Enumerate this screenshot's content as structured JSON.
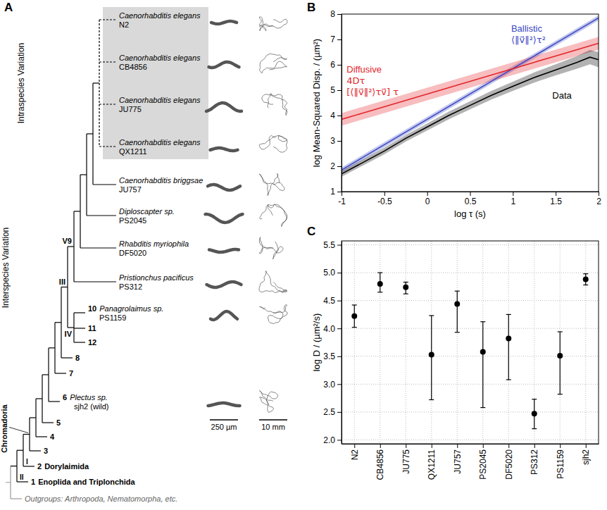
{
  "panel_labels": [
    "A",
    "B",
    "C"
  ],
  "tree": {
    "side_labels": [
      "Intraspecies Variation",
      "Interspecies Variation"
    ],
    "scale_bars": [
      "250 µm",
      "10 mm"
    ],
    "root": {
      "children": [
        {
          "children": [
            {
              "children": [
                {
                  "label": "Chromadoria",
                  "children": [
                    {
                      "children": [
                        {
                          "children": [
                            {
                              "children": [
                                {
                                  "children": [
                                    {
                                      "children": [
                                        {
                                          "label": "III",
                                          "children": [
                                            {
                                              "label": "V9",
                                              "children": [
                                                {
                                                  "children": [
                                                    {
                                                      "children": [
                                                        {
                                                          "children": [
                                                            {
                                                              "line_style": "dashed",
                                                              "children": [
                                                                {
                                                                  "species": "Caenorhabditis elegans",
                                                                  "strain": "N2"
                                                                },
                                                                {
                                                                  "species": "Caenorhabditis elegans",
                                                                  "strain": "CB4856"
                                                                },
                                                                {
                                                                  "species": "Caenorhabditis elegans",
                                                                  "strain": "JU775"
                                                                },
                                                                {
                                                                  "species": "Caenorhabditis elegans",
                                                                  "strain": "QX1211"
                                                                }
                                                              ]
                                                            },
                                                            {
                                                              "species": "Caenorhabditis briggsae",
                                                              "strain": "JU757"
                                                            }
                                                          ]
                                                        },
                                                        {
                                                          "species": "Diploscapter sp.",
                                                          "strain": "PS2045"
                                                        }
                                                      ]
                                                    },
                                                    {
                                                      "species": "Rhabditis myriophila",
                                                      "strain": "DF5020"
                                                    }
                                                  ]
                                                },
                                                {
                                                  "species": "Pristionchus pacificus",
                                                  "strain": "PS312"
                                                }
                                              ]
                                            },
                                            {
                                              "label": "IV",
                                              "children": [
                                                {
                                                  "number": "10",
                                                  "species": "Panagrolaimus sp.",
                                                  "strain": "PS1159"
                                                },
                                                {
                                                  "number": "11"
                                                },
                                                {
                                                  "number": "12"
                                                }
                                              ]
                                            }
                                          ]
                                        },
                                        {
                                          "number": "8"
                                        }
                                      ]
                                    },
                                    {
                                      "number": "7"
                                    }
                                  ]
                                },
                                {
                                  "number": "6",
                                  "species": "Plectus sp.",
                                  "strain": "sjh2 (wild)"
                                }
                              ]
                            },
                            {
                              "number": "5"
                            }
                          ]
                        },
                        {
                          "number": "4"
                        }
                      ]
                    },
                    {
                      "number": "3"
                    }
                  ]
                },
                {
                  "number": "2",
                  "group": "Dorylaimida",
                  "branch_label": "I"
                }
              ]
            },
            {
              "number": "1",
              "group": "Enoplida and Triplonchida",
              "branch_label": "II"
            }
          ]
        },
        {
          "text": "Outgroups: Arthropoda, Nematomorpha, etc."
        }
      ]
    }
  },
  "chart_data": [
    {
      "type": "line",
      "x_label": "log τ (s)",
      "y_label": "log Mean-Squared Disp. / (µm²)",
      "x": [
        -1,
        -0.75,
        -0.5,
        -0.25,
        0,
        0.25,
        0.5,
        0.75,
        1,
        1.25,
        1.5,
        1.75,
        1.9,
        2
      ],
      "xlim": [
        -1,
        2
      ],
      "xticks": [
        -1,
        -0.5,
        0,
        0.5,
        1,
        1.5,
        2
      ],
      "ylim": [
        1,
        8
      ],
      "yticks": [
        1,
        2,
        3,
        4,
        5,
        6,
        7,
        8
      ],
      "grid": false,
      "series": [
        {
          "name": "Ballistic",
          "annotations": [
            "⟨‖v⃗‖²⟩τ²"
          ],
          "color": "#3b48c4",
          "values": [
            1.85,
            2.35,
            2.85,
            3.35,
            3.85,
            4.35,
            4.85,
            5.35,
            5.85,
            6.35,
            6.85,
            7.35,
            7.65,
            7.85
          ],
          "errors": [
            0.1,
            0.1,
            0.1,
            0.1,
            0.1,
            0.1,
            0.1,
            0.1,
            0.1,
            0.1,
            0.1,
            0.1,
            0.1,
            0.1
          ]
        },
        {
          "name": "Diffusive",
          "annotations": [
            "4Dτ",
            "[⟨‖v⃗‖²⟩τv⃗] τ"
          ],
          "color": "#e3262b",
          "values": [
            3.85,
            4.1,
            4.35,
            4.6,
            4.85,
            5.1,
            5.35,
            5.6,
            5.85,
            6.1,
            6.35,
            6.6,
            6.75,
            6.85
          ],
          "errors": [
            0.25,
            0.25,
            0.25,
            0.25,
            0.25,
            0.25,
            0.25,
            0.25,
            0.25,
            0.25,
            0.25,
            0.25,
            0.25,
            0.25
          ]
        },
        {
          "name": "Data",
          "color": "#000000",
          "values": [
            1.7,
            2.15,
            2.6,
            3.1,
            3.55,
            4.0,
            4.4,
            4.8,
            5.15,
            5.5,
            5.8,
            6.1,
            6.3,
            6.2
          ],
          "errors": [
            0.12,
            0.12,
            0.13,
            0.13,
            0.14,
            0.15,
            0.16,
            0.17,
            0.18,
            0.2,
            0.22,
            0.25,
            0.28,
            0.3
          ]
        }
      ]
    },
    {
      "type": "errorbar",
      "y_label": "log D / (µm²/s)",
      "categories": [
        "N2",
        "CB4856",
        "JU775",
        "QX1211",
        "JU757",
        "PS2045",
        "DF5020",
        "PS312",
        "PS1159",
        "sjh2"
      ],
      "values": [
        4.22,
        4.8,
        4.74,
        3.53,
        4.44,
        3.58,
        3.82,
        2.47,
        3.51,
        4.88
      ],
      "error_minus": [
        0.2,
        0.15,
        0.12,
        0.81,
        0.51,
        1.0,
        0.74,
        0.27,
        0.69,
        0.1
      ],
      "error_plus": [
        0.2,
        0.2,
        0.09,
        0.7,
        0.23,
        0.54,
        0.43,
        0.26,
        0.43,
        0.1
      ],
      "ylim": [
        1.93,
        5.57
      ],
      "yticks": [
        {
          "value": 2,
          "label": "2.0"
        },
        2.5,
        {
          "value": 3,
          "label": "3.0"
        },
        3.5,
        {
          "value": 4,
          "label": "4.0"
        },
        4.5,
        {
          "value": 5,
          "label": "5.0"
        },
        5.5
      ],
      "grid": true,
      "color": "#000000",
      "marker": "circle"
    }
  ]
}
